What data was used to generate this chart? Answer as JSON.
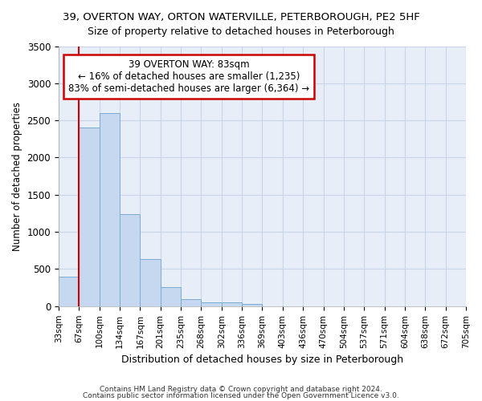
{
  "title1": "39, OVERTON WAY, ORTON WATERVILLE, PETERBOROUGH, PE2 5HF",
  "title2": "Size of property relative to detached houses in Peterborough",
  "xlabel": "Distribution of detached houses by size in Peterborough",
  "ylabel": "Number of detached properties",
  "footer1": "Contains HM Land Registry data © Crown copyright and database right 2024.",
  "footer2": "Contains public sector information licensed under the Open Government Licence v3.0.",
  "bar_values": [
    400,
    2400,
    2600,
    1240,
    640,
    255,
    90,
    55,
    50,
    35,
    0,
    0,
    0,
    0,
    0,
    0,
    0,
    0,
    0,
    0
  ],
  "bin_labels": [
    "33sqm",
    "67sqm",
    "100sqm",
    "134sqm",
    "167sqm",
    "201sqm",
    "235sqm",
    "268sqm",
    "302sqm",
    "336sqm",
    "369sqm",
    "403sqm",
    "436sqm",
    "470sqm",
    "504sqm",
    "537sqm",
    "571sqm",
    "604sqm",
    "638sqm",
    "672sqm",
    "705sqm"
  ],
  "bar_color": "#c5d8ef",
  "bar_edge_color": "#7aadd4",
  "grid_color": "#c8d4e8",
  "bg_color": "#e8eef8",
  "red_line_x": 1.0,
  "annotation_text": "39 OVERTON WAY: 83sqm\n← 16% of detached houses are smaller (1,235)\n83% of semi-detached houses are larger (6,364) →",
  "annotation_box_color": "#ffffff",
  "annotation_border_color": "#cc0000",
  "ylim": [
    0,
    3500
  ],
  "yticks": [
    0,
    500,
    1000,
    1500,
    2000,
    2500,
    3000,
    3500
  ]
}
